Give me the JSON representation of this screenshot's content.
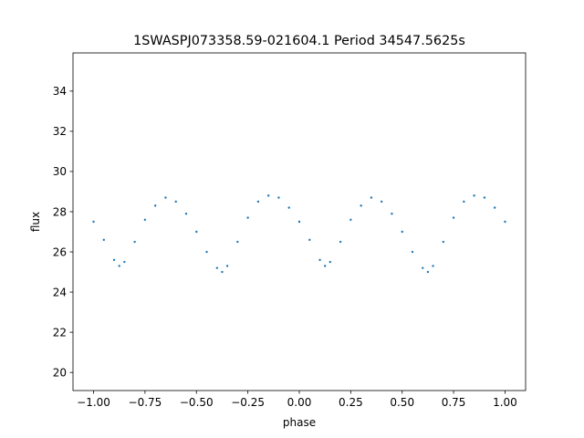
{
  "chart_data": {
    "type": "scatter",
    "title": "1SWASPJ073358.59-021604.1 Period 34547.5625s",
    "xlabel": "phase",
    "ylabel": "flux",
    "xlim": [
      -1.1,
      1.1
    ],
    "ylim": [
      19.1,
      35.9
    ],
    "xticks": [
      -1.0,
      -0.75,
      -0.5,
      -0.25,
      0.0,
      0.25,
      0.5,
      0.75,
      1.0
    ],
    "xtick_labels": [
      "−1.00",
      "−0.75",
      "−0.50",
      "−0.25",
      "0.00",
      "0.25",
      "0.50",
      "0.75",
      "1.00"
    ],
    "yticks": [
      20,
      22,
      24,
      26,
      28,
      30,
      32,
      34
    ],
    "ytick_labels": [
      "20",
      "22",
      "24",
      "26",
      "28",
      "30",
      "32",
      "34"
    ],
    "grid": false,
    "marker_color": "#1f77b4",
    "series": [
      {
        "x": [
          -1.0,
          -0.95,
          -0.9,
          -0.875,
          -0.85,
          -0.8,
          -0.75,
          -0.7,
          -0.65,
          -0.6,
          -0.55,
          -0.5,
          -0.45,
          -0.4,
          -0.375,
          -0.35,
          -0.3,
          -0.25,
          -0.2,
          -0.15,
          -0.1,
          -0.05,
          0.0,
          0.05,
          0.1,
          0.125,
          0.15,
          0.2,
          0.25,
          0.3,
          0.35,
          0.4,
          0.45,
          0.5,
          0.55,
          0.6,
          0.625,
          0.65,
          0.7,
          0.75,
          0.8,
          0.85,
          0.9,
          0.95,
          1.0
        ],
        "y": [
          27.5,
          26.6,
          25.6,
          25.3,
          25.5,
          26.5,
          27.6,
          28.3,
          28.7,
          28.5,
          27.9,
          27.0,
          26.0,
          25.2,
          25.0,
          25.3,
          26.5,
          27.7,
          28.5,
          28.8,
          28.7,
          28.2,
          27.5,
          26.6,
          25.6,
          25.3,
          25.5,
          26.5,
          27.6,
          28.3,
          28.7,
          28.5,
          27.9,
          27.0,
          26.0,
          25.2,
          25.0,
          25.3,
          26.5,
          27.7,
          28.5,
          28.8,
          28.7,
          28.2,
          27.5
        ]
      }
    ]
  }
}
